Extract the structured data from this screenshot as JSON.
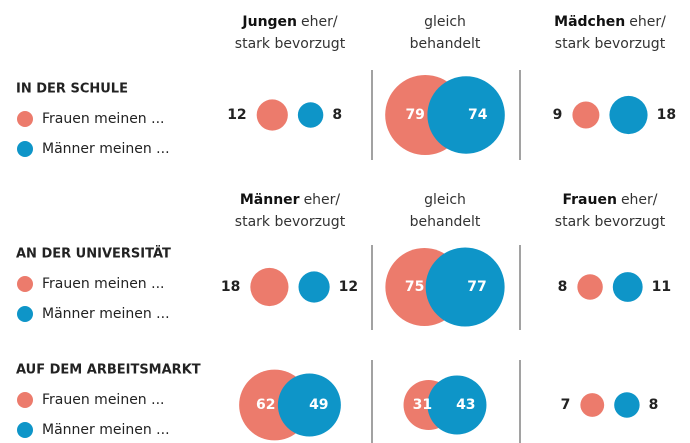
{
  "chart_data": {
    "type": "bubble",
    "series": [
      {
        "name": "Frauen meinen ...",
        "color": "#ec7b6c"
      },
      {
        "name": "Männer meinen ...",
        "color": "#0e95c8"
      }
    ],
    "groups": [
      {
        "title": "IN DER SCHULE",
        "headers": [
          {
            "bold": "Jungen",
            "lines": [
              "eher/",
              "stark bevorzugt"
            ]
          },
          {
            "lines": [
              "gleich",
              "behandelt"
            ]
          },
          {
            "bold": "Mädchen",
            "lines": [
              "eher/",
              "stark bevorzugt"
            ]
          }
        ],
        "values": [
          [
            12,
            8
          ],
          [
            79,
            74
          ],
          [
            9,
            18
          ]
        ]
      },
      {
        "title": "AN DER UNIVERSITÄT",
        "headers": [
          {
            "bold": "Männer",
            "lines": [
              "eher/",
              "stark bevorzugt"
            ]
          },
          {
            "lines": [
              "gleich",
              "behandelt"
            ]
          },
          {
            "bold": "Frauen",
            "lines": [
              "eher/",
              "stark bevorzugt"
            ]
          }
        ],
        "values": [
          [
            18,
            12
          ],
          [
            75,
            77
          ],
          [
            8,
            11
          ]
        ]
      },
      {
        "title": "AUF DEM ARBEITSMARKT",
        "values": [
          [
            62,
            49
          ],
          [
            31,
            43
          ],
          [
            7,
            8
          ]
        ]
      }
    ]
  }
}
